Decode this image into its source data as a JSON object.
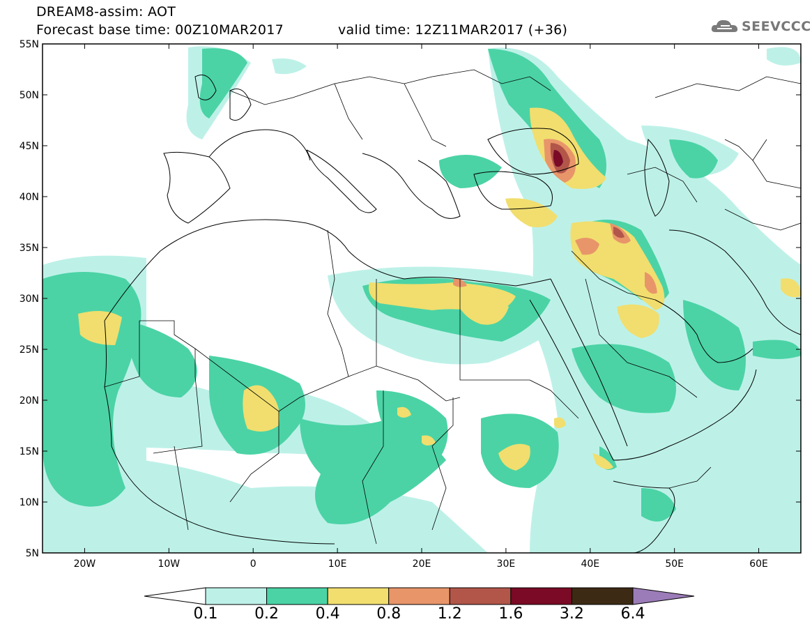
{
  "header": {
    "line1": "DREAM8-assim: AOT",
    "line2": "Forecast base time: 00Z10MAR2017",
    "line3": "valid time: 12Z11MAR2017 (+36)"
  },
  "logo": {
    "text": "SEEVCCC",
    "icon": "cloud-icon"
  },
  "map": {
    "lat_labels": [
      "55N",
      "50N",
      "45N",
      "40N",
      "35N",
      "30N",
      "25N",
      "20N",
      "15N",
      "10N",
      "5N"
    ],
    "lon_labels": [
      "20W",
      "10W",
      "0",
      "10E",
      "20E",
      "30E",
      "40E",
      "50E",
      "60E"
    ],
    "extent": {
      "lon": [
        -25,
        65
      ],
      "lat": [
        5,
        55
      ]
    }
  },
  "colorbar": {
    "labels": [
      "0.1",
      "0.2",
      "0.4",
      "0.8",
      "1.2",
      "1.6",
      "3.2",
      "6.4"
    ],
    "colors": [
      "#ffffff",
      "#bdf1e8",
      "#4bd3a5",
      "#f1de6e",
      "#e8956a",
      "#b2564a",
      "#7a0a26",
      "#3d2a14",
      "#9b7cb8"
    ]
  }
}
